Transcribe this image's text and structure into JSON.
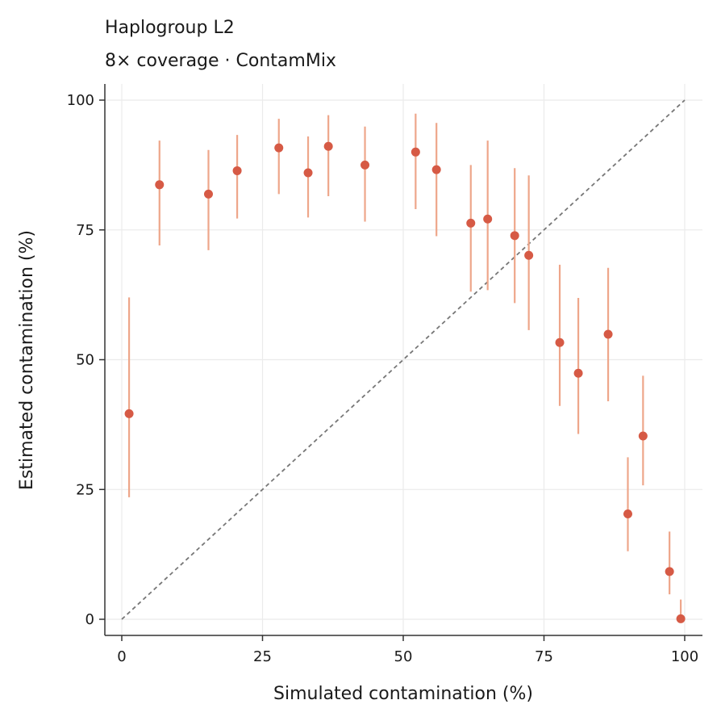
{
  "chart_data": {
    "type": "scatter",
    "title": "Haplogroup L2",
    "subtitle": "8× coverage  ·  ContamMix",
    "xlabel": "Simulated contamination (%)",
    "ylabel": "Estimated contamination (%)",
    "xlim": [
      -3,
      103
    ],
    "ylim": [
      -3,
      103
    ],
    "xticks": [
      0,
      25,
      50,
      75,
      100
    ],
    "yticks": [
      0,
      25,
      50,
      75,
      100
    ],
    "grid": true,
    "reference_line": "y = x",
    "colors": {
      "point": "#d65a45",
      "errorbar": "#eea68a",
      "reference": "#777777",
      "grid": "#ebebeb",
      "axis": "#333333"
    },
    "series": [
      {
        "points": [
          {
            "x": 1.3,
            "y": 39.6,
            "lo": 23.5,
            "hi": 62.0
          },
          {
            "x": 6.7,
            "y": 83.7,
            "lo": 72.0,
            "hi": 92.2
          },
          {
            "x": 15.4,
            "y": 81.9,
            "lo": 71.1,
            "hi": 90.4
          },
          {
            "x": 20.5,
            "y": 86.4,
            "lo": 77.2,
            "hi": 93.3
          },
          {
            "x": 27.9,
            "y": 90.8,
            "lo": 81.9,
            "hi": 96.4
          },
          {
            "x": 33.1,
            "y": 86.0,
            "lo": 77.4,
            "hi": 93.0
          },
          {
            "x": 36.7,
            "y": 91.1,
            "lo": 81.5,
            "hi": 97.1
          },
          {
            "x": 43.2,
            "y": 87.5,
            "lo": 76.6,
            "hi": 94.9
          },
          {
            "x": 52.2,
            "y": 90.0,
            "lo": 79.0,
            "hi": 97.4
          },
          {
            "x": 55.9,
            "y": 86.6,
            "lo": 73.8,
            "hi": 95.6
          },
          {
            "x": 62.0,
            "y": 76.3,
            "lo": 63.1,
            "hi": 87.5
          },
          {
            "x": 65.0,
            "y": 77.1,
            "lo": 63.4,
            "hi": 92.2
          },
          {
            "x": 69.8,
            "y": 73.9,
            "lo": 60.9,
            "hi": 86.9
          },
          {
            "x": 72.3,
            "y": 70.1,
            "lo": 55.7,
            "hi": 85.5
          },
          {
            "x": 77.8,
            "y": 53.3,
            "lo": 41.1,
            "hi": 68.3
          },
          {
            "x": 81.1,
            "y": 47.4,
            "lo": 35.7,
            "hi": 61.9
          },
          {
            "x": 86.4,
            "y": 54.9,
            "lo": 42.0,
            "hi": 67.7
          },
          {
            "x": 89.9,
            "y": 20.3,
            "lo": 13.1,
            "hi": 31.2
          },
          {
            "x": 92.6,
            "y": 35.3,
            "lo": 25.8,
            "hi": 46.9
          },
          {
            "x": 97.3,
            "y": 9.2,
            "lo": 4.8,
            "hi": 16.9
          },
          {
            "x": 99.3,
            "y": 0.1,
            "lo": 0.0,
            "hi": 3.8
          }
        ]
      }
    ]
  }
}
